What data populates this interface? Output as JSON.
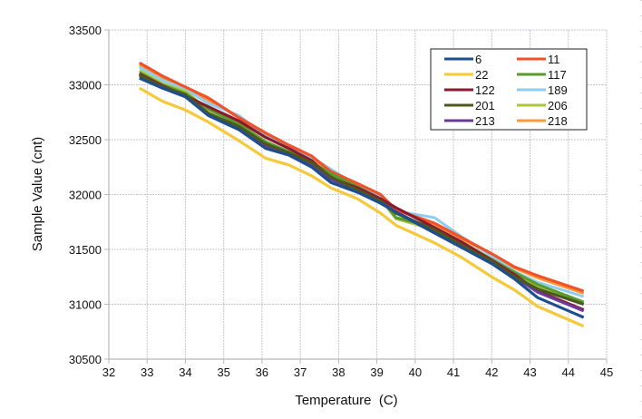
{
  "chart_data": {
    "type": "line",
    "title": "",
    "xlabel": "Temperature  (C)",
    "ylabel": "Sample Value (cnt)",
    "xlim": [
      32,
      45
    ],
    "ylim": [
      30500,
      33500
    ],
    "xticks": [
      "32",
      "33",
      "34",
      "35",
      "36",
      "37",
      "38",
      "39",
      "40",
      "41",
      "42",
      "43",
      "44",
      "45"
    ],
    "yticks": [
      "30500",
      "31000",
      "31500",
      "32000",
      "32500",
      "33000",
      "33500"
    ],
    "grid": true,
    "legend_position": "top-right",
    "x": [
      32.8,
      33.4,
      34.0,
      34.6,
      35.4,
      36.1,
      36.7,
      37.3,
      37.8,
      38.5,
      39.1,
      39.5,
      40.5,
      41.2,
      42.0,
      42.6,
      43.2,
      44.4
    ],
    "series": [
      {
        "name": "6",
        "color": "#1f4e8c",
        "values": [
          33060,
          32970,
          32890,
          32720,
          32590,
          32420,
          32360,
          32250,
          32110,
          32020,
          31920,
          31840,
          31650,
          31520,
          31370,
          31230,
          31060,
          30880
        ]
      },
      {
        "name": "11",
        "color": "#f0522a",
        "values": [
          33200,
          33080,
          32980,
          32880,
          32700,
          32560,
          32450,
          32350,
          32210,
          32100,
          32000,
          31860,
          31740,
          31610,
          31460,
          31340,
          31260,
          31120
        ]
      },
      {
        "name": "22",
        "color": "#f5c93a",
        "values": [
          32970,
          32850,
          32770,
          32660,
          32490,
          32330,
          32270,
          32170,
          32060,
          31960,
          31830,
          31720,
          31560,
          31430,
          31250,
          31130,
          30980,
          30800
        ]
      },
      {
        "name": "117",
        "color": "#5a9a2e",
        "values": [
          33110,
          33000,
          32920,
          32780,
          32640,
          32480,
          32390,
          32290,
          32190,
          32070,
          31960,
          31790,
          31700,
          31570,
          31410,
          31290,
          31180,
          31020
        ]
      },
      {
        "name": "122",
        "color": "#8b1a2e",
        "values": [
          33100,
          32990,
          32900,
          32800,
          32670,
          32520,
          32420,
          32310,
          32150,
          32060,
          31960,
          31880,
          31700,
          31570,
          31400,
          31270,
          31120,
          30950
        ]
      },
      {
        "name": "189",
        "color": "#8ecdf2",
        "values": [
          33160,
          33040,
          32960,
          32830,
          32720,
          32530,
          32440,
          32340,
          32230,
          32080,
          31970,
          31850,
          31790,
          31620,
          31440,
          31300,
          31200,
          31070
        ]
      },
      {
        "name": "201",
        "color": "#4a5a1e",
        "values": [
          33090,
          32980,
          32910,
          32740,
          32620,
          32460,
          32380,
          32290,
          32160,
          32040,
          31940,
          31830,
          31680,
          31540,
          31390,
          31250,
          31140,
          31000
        ]
      },
      {
        "name": "206",
        "color": "#a8c83c",
        "values": [
          33130,
          33010,
          32940,
          32770,
          32650,
          32470,
          32380,
          32280,
          32170,
          32060,
          31960,
          31780,
          31680,
          31550,
          31390,
          31270,
          31160,
          31000
        ]
      },
      {
        "name": "213",
        "color": "#6a3a9a",
        "values": [
          33080,
          32980,
          32900,
          32730,
          32610,
          32440,
          32370,
          32270,
          32140,
          32040,
          31940,
          31840,
          31670,
          31540,
          31380,
          31250,
          31110,
          30940
        ]
      },
      {
        "name": "218",
        "color": "#f79a3a",
        "values": [
          33180,
          33060,
          32970,
          32860,
          32700,
          32550,
          32440,
          32340,
          32200,
          32090,
          31990,
          31860,
          31730,
          31600,
          31450,
          31330,
          31240,
          31100
        ]
      }
    ]
  }
}
